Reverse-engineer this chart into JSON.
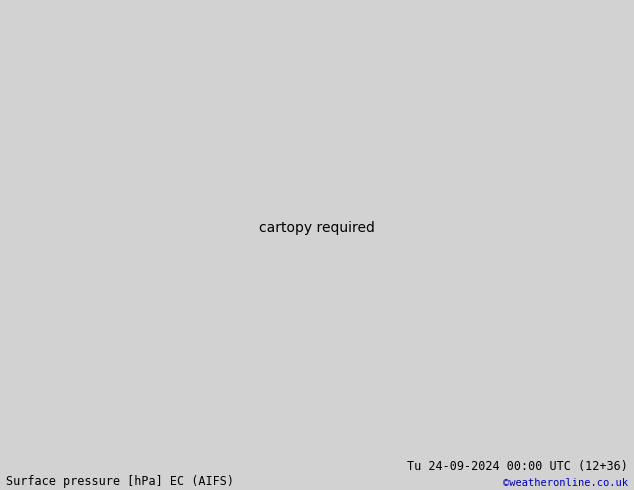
{
  "title_left": "Surface pressure [hPa] EC (AIFS)",
  "title_right": "Tu 24-09-2024 00:00 UTC (12+36)",
  "copyright": "©weatheronline.co.uk",
  "bg_color": "#d2d2d2",
  "land_color": "#b8dba0",
  "aus_color": "#a0cc80",
  "isobar_color_black": "#000000",
  "isobar_color_blue": "#0000bb",
  "isobar_color_red": "#cc0000",
  "label_fontsize": 7,
  "title_fontsize": 8.5,
  "copyright_fontsize": 7.5,
  "figsize": [
    6.34,
    4.9
  ],
  "dpi": 100,
  "extent": [
    90,
    185,
    -65,
    12
  ]
}
